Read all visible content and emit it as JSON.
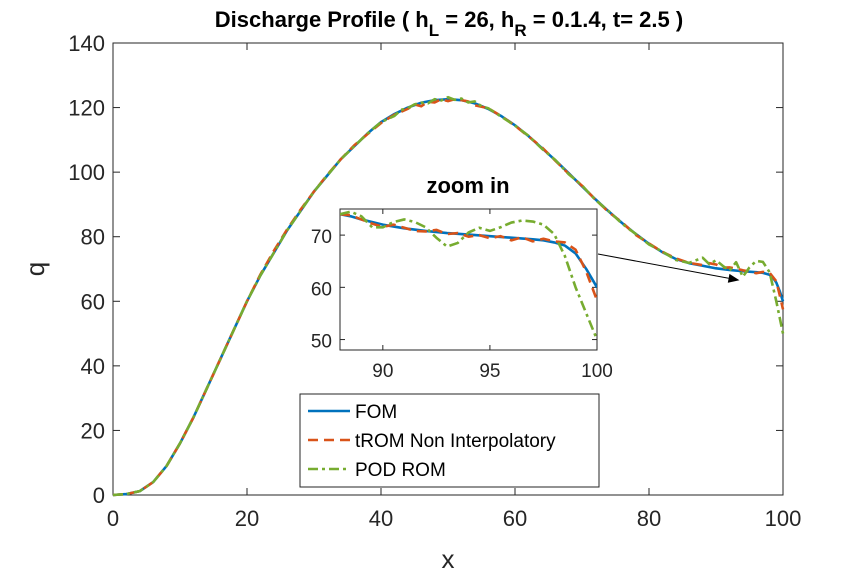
{
  "chart_data": {
    "type": "line",
    "title": "Discharge Profile",
    "title_parts": [
      "Discharge Profile ( h",
      "L",
      " = 26, h",
      "R",
      " = 0.1.4, t= 2.5 )"
    ],
    "xlabel": "x",
    "ylabel": "q",
    "xlim": [
      0,
      100
    ],
    "ylim": [
      0,
      140
    ],
    "xticks": [
      0,
      20,
      40,
      60,
      80,
      100
    ],
    "yticks": [
      0,
      20,
      40,
      60,
      80,
      100,
      120,
      140
    ],
    "grid": false,
    "legend_position": "bottom-center",
    "colors": {
      "FOM": "#0072BD",
      "tROM Non Interpolatory": "#D95319",
      "POD ROM": "#77AC30",
      "axes": "#262626",
      "arrow": "#000000"
    },
    "series": [
      {
        "name": "FOM",
        "style": "solid",
        "x": [
          0,
          2,
          4,
          6,
          8,
          10,
          12,
          14,
          16,
          18,
          20,
          22,
          24,
          26,
          28,
          30,
          32,
          34,
          36,
          38,
          40,
          42,
          44,
          46,
          48,
          50,
          52,
          54,
          56,
          58,
          60,
          62,
          64,
          66,
          68,
          70,
          72,
          74,
          76,
          78,
          80,
          82,
          84,
          86,
          88,
          90,
          92,
          94,
          96,
          97,
          98,
          98.5,
          99,
          99.5,
          100
        ],
        "y": [
          0,
          0.3,
          1.2,
          4,
          9,
          16,
          24,
          33,
          42,
          51,
          60,
          68,
          75,
          82,
          88,
          94,
          99,
          104,
          108,
          112,
          115.5,
          118,
          120,
          121.5,
          122.3,
          122.6,
          122.3,
          121.3,
          119.6,
          117.3,
          114.5,
          111.2,
          107.5,
          103.7,
          99.7,
          95.6,
          91.6,
          87.8,
          84.2,
          80.9,
          77.8,
          75.2,
          73.1,
          71.8,
          71,
          70.2,
          69.7,
          69.3,
          69,
          68.8,
          68.2,
          67.3,
          65.8,
          63.2,
          60
        ]
      },
      {
        "name": "tROM Non Interpolatory",
        "style": "dashed",
        "x": [
          0,
          2,
          4,
          6,
          8,
          10,
          12,
          14,
          16,
          18,
          20,
          22,
          24,
          26,
          28,
          30,
          32,
          34,
          36,
          38,
          40,
          42,
          44,
          45,
          46,
          47,
          48,
          49,
          50,
          51,
          52,
          53,
          54,
          56,
          58,
          60,
          62,
          64,
          66,
          68,
          70,
          72,
          74,
          76,
          78,
          80,
          82,
          84,
          86,
          88,
          89,
          90,
          91,
          92,
          93,
          94,
          95,
          96,
          97,
          98,
          99,
          99.5,
          100
        ],
        "y": [
          0,
          0.3,
          1.2,
          4,
          9,
          16,
          24,
          33,
          42,
          51,
          60,
          68.3,
          75.6,
          82.3,
          88.4,
          94,
          99.2,
          104,
          108.3,
          111.8,
          115.2,
          117.8,
          119.6,
          121,
          120.4,
          121.8,
          121.6,
          122.6,
          122,
          122.6,
          122.3,
          121.9,
          120.7,
          119.8,
          117.3,
          114.4,
          111.1,
          107.7,
          103.6,
          99.5,
          95.8,
          91.5,
          87.6,
          84.4,
          80.6,
          77.9,
          75.3,
          73.3,
          71.9,
          71.2,
          71.8,
          71.4,
          70.4,
          70.5,
          70.1,
          69.6,
          69.2,
          68.7,
          69.1,
          68.8,
          66.2,
          62,
          57.5
        ]
      },
      {
        "name": "POD ROM",
        "style": "dashdot",
        "x": [
          0,
          2,
          4,
          6,
          8,
          10,
          12,
          14,
          16,
          18,
          20,
          22,
          24,
          26,
          28,
          30,
          32,
          34,
          36,
          38,
          40,
          42,
          43,
          44,
          45,
          46,
          47,
          48,
          49,
          50,
          51,
          52,
          53,
          54,
          55,
          56,
          58,
          60,
          62,
          64,
          66,
          68,
          70,
          72,
          74,
          76,
          78,
          80,
          82,
          84,
          86,
          88,
          89,
          90,
          91,
          92,
          93,
          94,
          95,
          96,
          97,
          98,
          99,
          99.5,
          100
        ],
        "y": [
          0,
          0.3,
          1.2,
          4,
          9,
          16,
          24,
          33,
          42,
          51,
          60,
          68,
          75,
          82,
          88,
          94,
          99,
          104,
          108,
          112,
          115.5,
          117.4,
          119.3,
          119.8,
          121,
          121.5,
          121.3,
          122.6,
          122.2,
          123.2,
          122.4,
          122.8,
          121.6,
          121.9,
          120.4,
          119.8,
          117.1,
          114.4,
          111.3,
          107.3,
          103.8,
          99.4,
          95.9,
          91.4,
          87.9,
          84,
          80.9,
          77.6,
          75.4,
          72.8,
          71.9,
          73.5,
          71.5,
          72.7,
          71,
          69.5,
          72.1,
          67.6,
          70.5,
          72.5,
          72.2,
          69,
          60,
          55,
          50
        ]
      }
    ],
    "inset": {
      "title": "zoom in",
      "xlim": [
        88,
        100
      ],
      "ylim": [
        48,
        75
      ],
      "xticks": [
        90,
        95,
        100
      ],
      "yticks": [
        50,
        60,
        70
      ],
      "arrow_target": [
        93.5,
        66.5
      ],
      "series": [
        {
          "name": "FOM",
          "x": [
            88,
            88.5,
            89,
            90,
            91,
            92,
            93,
            94,
            95,
            96,
            97,
            97.5,
            98,
            98.5,
            99,
            99.5,
            100
          ],
          "y": [
            74,
            73.6,
            73,
            72,
            71.3,
            70.8,
            70.4,
            70.1,
            69.8,
            69.5,
            69.2,
            69,
            68.6,
            68,
            66.5,
            63.5,
            60
          ]
        },
        {
          "name": "tROM Non Interpolatory",
          "x": [
            88,
            88.5,
            89,
            89.5,
            90,
            90.5,
            91,
            91.5,
            92,
            92.5,
            93,
            93.5,
            94,
            94.5,
            95,
            95.5,
            96,
            96.5,
            97,
            97.5,
            98,
            98.5,
            99,
            99.5,
            100
          ],
          "y": [
            74,
            73.8,
            73,
            72.2,
            71.6,
            72,
            71.4,
            70.8,
            70.7,
            71,
            70.2,
            70.4,
            69.7,
            70,
            69.4,
            69.8,
            69,
            69.6,
            68.8,
            69.3,
            68.8,
            68.6,
            67.2,
            63,
            57.5
          ]
        },
        {
          "name": "POD ROM",
          "x": [
            88,
            88.5,
            89,
            89.5,
            90,
            90.5,
            91,
            91.5,
            92,
            92.5,
            93,
            93.5,
            94,
            94.5,
            95,
            95.5,
            96,
            96.5,
            97,
            97.5,
            98,
            98.5,
            99,
            99.5,
            100
          ],
          "y": [
            74,
            74.5,
            73.6,
            71.5,
            71.5,
            72.5,
            73,
            72.5,
            71.5,
            69.5,
            67.8,
            68.5,
            70.5,
            71.4,
            70.8,
            71.5,
            72.4,
            72.8,
            72.6,
            72,
            70.2,
            66,
            60,
            55,
            50
          ]
        }
      ]
    },
    "legend": [
      "FOM",
      "tROM Non Interpolatory",
      "POD ROM"
    ]
  }
}
